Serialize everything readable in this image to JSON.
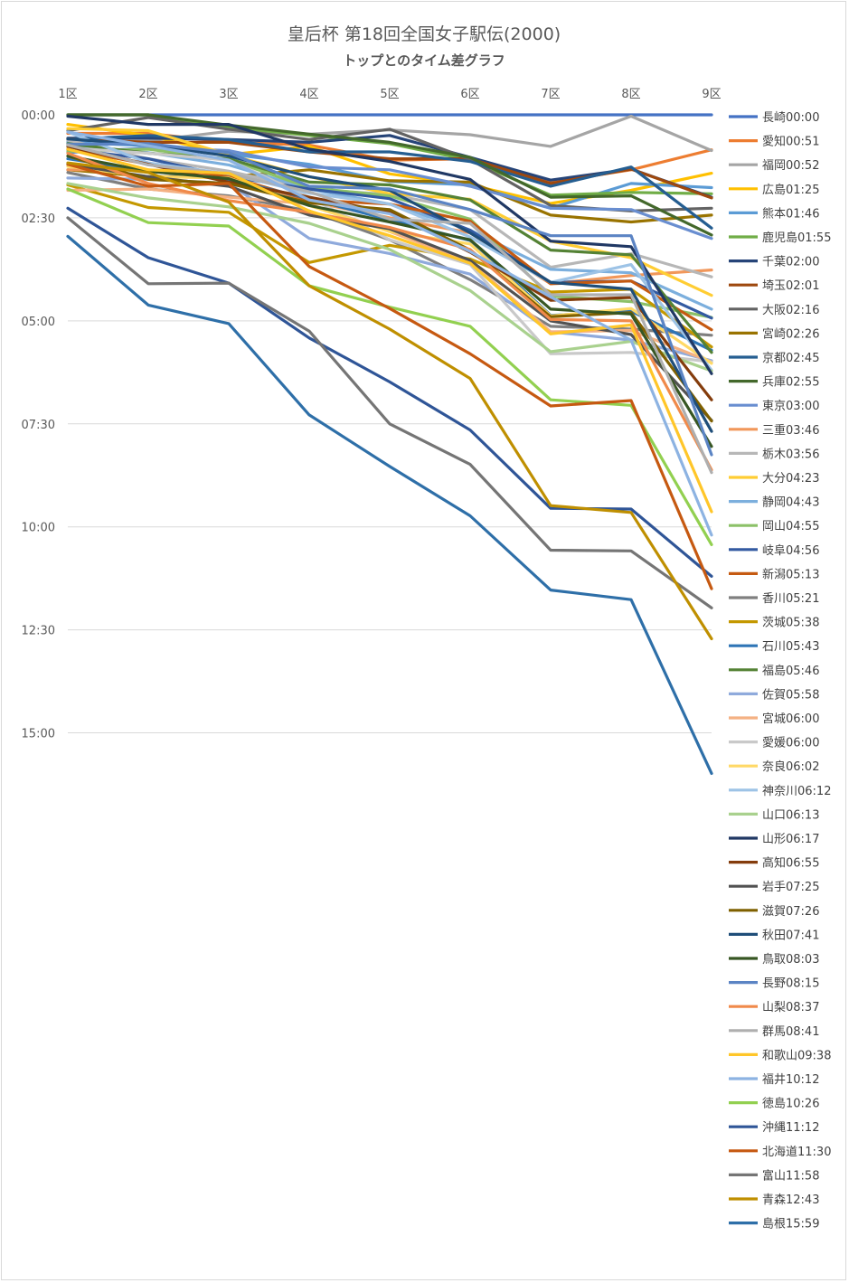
{
  "chart_data": {
    "type": "line",
    "title": "皇后杯 第18回全国女子駅伝(2000)",
    "subtitle": "トップとのタイム差グラフ",
    "categories": [
      "1区",
      "2区",
      "3区",
      "4区",
      "5区",
      "6区",
      "7区",
      "8区",
      "9区"
    ],
    "y_ticks": [
      "00:00",
      "02:30",
      "05:00",
      "07:30",
      "10:00",
      "12:30",
      "15:00"
    ],
    "ylim_seconds": [
      0,
      900
    ],
    "y_reversed": true,
    "grid": true,
    "legend_position": "right",
    "series": [
      {
        "name": "長崎",
        "label": "長崎00:00",
        "color": "#4472c4",
        "values": [
          0,
          0,
          0,
          0,
          0,
          0,
          0,
          0,
          0
        ]
      },
      {
        "name": "愛知",
        "label": "愛知00:51",
        "color": "#ed7d31",
        "values": [
          27,
          27,
          40,
          44,
          66,
          64,
          98,
          80,
          51
        ]
      },
      {
        "name": "福岡",
        "label": "福岡00:52",
        "color": "#a5a5a5",
        "values": [
          38,
          38,
          24,
          28,
          22,
          29,
          46,
          2,
          52
        ]
      },
      {
        "name": "広島",
        "label": "広島01:25",
        "color": "#ffc000",
        "values": [
          14,
          30,
          58,
          46,
          86,
          102,
          129,
          110,
          85
        ]
      },
      {
        "name": "熊本",
        "label": "熊本01:46",
        "color": "#5b9bd5",
        "values": [
          40,
          45,
          57,
          72,
          97,
          102,
          136,
          100,
          106
        ]
      },
      {
        "name": "鹿児島",
        "label": "鹿児島01:55",
        "color": "#70ad47",
        "values": [
          0,
          0,
          18,
          30,
          42,
          66,
          117,
          113,
          115
        ]
      },
      {
        "name": "千葉",
        "label": "千葉02:00",
        "color": "#264478",
        "values": [
          34,
          34,
          36,
          40,
          30,
          62,
          95,
          79,
          120
        ]
      },
      {
        "name": "埼玉",
        "label": "埼玉02:01",
        "color": "#9e480e",
        "values": [
          35,
          40,
          40,
          54,
          64,
          64,
          100,
          79,
          121
        ]
      },
      {
        "name": "大阪",
        "label": "大阪02:16",
        "color": "#636363",
        "values": [
          23,
          4,
          21,
          36,
          21,
          65,
          132,
          140,
          136
        ]
      },
      {
        "name": "宮崎",
        "label": "宮崎02:26",
        "color": "#997300",
        "values": [
          80,
          90,
          90,
          80,
          96,
          98,
          146,
          156,
          146
        ]
      },
      {
        "name": "京都",
        "label": "京都02:45",
        "color": "#255e91",
        "values": [
          36,
          30,
          36,
          54,
          54,
          68,
          104,
          76,
          165
        ]
      },
      {
        "name": "兵庫",
        "label": "兵庫02:55",
        "color": "#43682b",
        "values": [
          0,
          0,
          15,
          28,
          40,
          62,
          120,
          118,
          175
        ]
      },
      {
        "name": "東京",
        "label": "東京03:00",
        "color": "#698ed0",
        "values": [
          55,
          48,
          52,
          76,
          80,
          104,
          136,
          138,
          180
        ]
      },
      {
        "name": "三重",
        "label": "三重03:46",
        "color": "#f1975a",
        "values": [
          80,
          80,
          90,
          126,
          150,
          172,
          246,
          234,
          226
        ]
      },
      {
        "name": "栃木",
        "label": "栃木03:56",
        "color": "#b7b7b7",
        "values": [
          37,
          64,
          82,
          108,
          116,
          138,
          222,
          202,
          236
        ]
      },
      {
        "name": "大分",
        "label": "大分04:23",
        "color": "#ffcd33",
        "values": [
          20,
          23,
          58,
          90,
          115,
          123,
          184,
          208,
          263
        ]
      },
      {
        "name": "静岡",
        "label": "静岡04:43",
        "color": "#7cafdd",
        "values": [
          45,
          55,
          73,
          108,
          130,
          168,
          225,
          230,
          283
        ]
      },
      {
        "name": "岡山",
        "label": "岡山04:55",
        "color": "#8cc168",
        "values": [
          53,
          50,
          65,
          106,
          118,
          152,
          264,
          272,
          295
        ]
      },
      {
        "name": "岐阜",
        "label": "岐阜04:56",
        "color": "#335aa1",
        "values": [
          50,
          64,
          90,
          108,
          122,
          168,
          244,
          242,
          296
        ]
      },
      {
        "name": "新潟",
        "label": "新潟05:13",
        "color": "#c55a11",
        "values": [
          50,
          72,
          90,
          124,
          130,
          155,
          246,
          242,
          313
        ]
      },
      {
        "name": "香川",
        "label": "香川05:21",
        "color": "#7f7f7f",
        "values": [
          84,
          108,
          118,
          140,
          182,
          240,
          308,
          312,
          321
        ]
      },
      {
        "name": "茨城",
        "label": "茨城05:38",
        "color": "#c49800",
        "values": [
          102,
          135,
          142,
          215,
          190,
          210,
          258,
          254,
          338
        ]
      },
      {
        "name": "石川",
        "label": "石川05:43",
        "color": "#2e75b6",
        "values": [
          64,
          82,
          94,
          122,
          153,
          183,
          292,
          286,
          343
        ]
      },
      {
        "name": "福島",
        "label": "福島05:46",
        "color": "#548235",
        "values": [
          42,
          56,
          64,
          98,
          102,
          124,
          197,
          204,
          346
        ]
      },
      {
        "name": "佐賀",
        "label": "佐賀05:58",
        "color": "#8faadc",
        "values": [
          92,
          94,
          100,
          180,
          202,
          232,
          316,
          328,
          358
        ]
      },
      {
        "name": "宮城",
        "label": "宮城06:00",
        "color": "#f4b183",
        "values": [
          110,
          108,
          120,
          130,
          170,
          214,
          316,
          314,
          360
        ]
      },
      {
        "name": "愛媛",
        "label": "愛媛06:00",
        "color": "#c9c9c9",
        "values": [
          48,
          56,
          66,
          120,
          182,
          218,
          348,
          346,
          360
        ]
      },
      {
        "name": "奈良",
        "label": "奈良06:02",
        "color": "#ffd966",
        "values": [
          75,
          90,
          92,
          132,
          170,
          188,
          293,
          282,
          362
        ]
      },
      {
        "name": "神奈川",
        "label": "神奈川06:12",
        "color": "#9dc3e6",
        "values": [
          25,
          70,
          86,
          114,
          130,
          178,
          244,
          218,
          372
        ]
      },
      {
        "name": "山口",
        "label": "山口06:13",
        "color": "#a9d18e",
        "values": [
          100,
          121,
          134,
          158,
          196,
          256,
          345,
          330,
          373
        ]
      },
      {
        "name": "山形",
        "label": "山形06:17",
        "color": "#203864",
        "values": [
          2,
          14,
          14,
          50,
          68,
          94,
          184,
          192,
          377
        ]
      },
      {
        "name": "高知",
        "label": "高知06:55",
        "color": "#843c0c",
        "values": [
          46,
          72,
          98,
          120,
          142,
          200,
          270,
          266,
          415
        ]
      },
      {
        "name": "岩手",
        "label": "岩手07:25",
        "color": "#525252",
        "values": [
          72,
          90,
          104,
          146,
          166,
          212,
          300,
          320,
          445
        ]
      },
      {
        "name": "滋賀",
        "label": "滋賀07:26",
        "color": "#7f6000",
        "values": [
          60,
          94,
          100,
          128,
          138,
          197,
          294,
          288,
          446
        ]
      },
      {
        "name": "秋田",
        "label": "秋田07:41",
        "color": "#1f4e79",
        "values": [
          35,
          44,
          60,
          90,
          110,
          172,
          244,
          254,
          461
        ]
      },
      {
        "name": "鳥取",
        "label": "鳥取08:03",
        "color": "#375623",
        "values": [
          60,
          82,
          93,
          132,
          156,
          182,
          283,
          290,
          483
        ]
      },
      {
        "name": "長野",
        "label": "長野08:15",
        "color": "#5b84c4",
        "values": [
          43,
          42,
          55,
          104,
          108,
          138,
          176,
          176,
          495
        ]
      },
      {
        "name": "山梨",
        "label": "山梨08:37",
        "color": "#f08a4b",
        "values": [
          56,
          100,
          125,
          142,
          164,
          196,
          298,
          300,
          517
        ]
      },
      {
        "name": "群馬",
        "label": "群馬08:41",
        "color": "#afafaf",
        "values": [
          44,
          73,
          86,
          112,
          152,
          158,
          262,
          262,
          521
        ]
      },
      {
        "name": "和歌山",
        "label": "和歌山09:38",
        "color": "#ffc629",
        "values": [
          50,
          80,
          85,
          140,
          176,
          216,
          319,
          306,
          578
        ]
      },
      {
        "name": "福井",
        "label": "福井10:12",
        "color": "#8db3e2",
        "values": [
          25,
          45,
          66,
          124,
          144,
          199,
          265,
          328,
          612
        ]
      },
      {
        "name": "徳島",
        "label": "徳島10:26",
        "color": "#92d050",
        "values": [
          108,
          157,
          162,
          249,
          280,
          308,
          415,
          423,
          626
        ]
      },
      {
        "name": "沖縄",
        "label": "沖縄11:12",
        "color": "#2f5597",
        "values": [
          136,
          208,
          245,
          325,
          389,
          459,
          573,
          574,
          672
        ]
      },
      {
        "name": "北海道",
        "label": "北海道11:30",
        "color": "#c65911",
        "values": [
          72,
          104,
          100,
          221,
          282,
          348,
          424,
          416,
          690
        ]
      },
      {
        "name": "富山",
        "label": "富山11:58",
        "color": "#757575",
        "values": [
          150,
          246,
          245,
          315,
          450,
          509,
          634,
          635,
          718
        ]
      },
      {
        "name": "青森",
        "label": "青森12:43",
        "color": "#bf8f00",
        "values": [
          70,
          84,
          127,
          249,
          312,
          384,
          569,
          579,
          763
        ]
      },
      {
        "name": "島根",
        "label": "島根15:59",
        "color": "#2e6fa8",
        "values": [
          177,
          277,
          304,
          437,
          512,
          584,
          692,
          706,
          959
        ]
      }
    ]
  }
}
